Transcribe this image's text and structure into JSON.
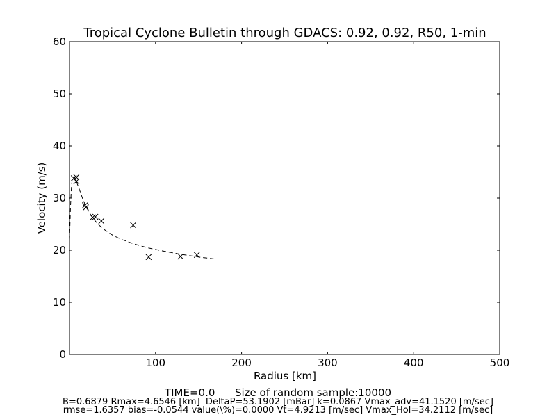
{
  "chart_data": {
    "type": "scatter",
    "title": "Tropical Cyclone Bulletin through GDACS: 0.92, 0.92, R50, 1-min",
    "xlabel": "Radius [km]",
    "ylabel": "Velocity (m/s)",
    "xlim": [
      0,
      500
    ],
    "ylim": [
      0,
      60
    ],
    "xticks": [
      100,
      200,
      300,
      400,
      500
    ],
    "xtick_labels": [
      "100",
      "200",
      "300",
      "400",
      "500"
    ],
    "yticks": [
      0,
      10,
      20,
      30,
      40,
      50,
      60
    ],
    "ytick_labels": [
      "0",
      "10",
      "20",
      "30",
      "40",
      "50",
      "60"
    ],
    "grid": false,
    "series": [
      {
        "kind": "markers",
        "marker": "x",
        "color": "#000000",
        "x": [
          5,
          8,
          8,
          18,
          19,
          27,
          30,
          37,
          74,
          92,
          129,
          148
        ],
        "y": [
          33.8,
          34.0,
          33.2,
          28.6,
          28.2,
          26.3,
          26.4,
          25.6,
          24.8,
          18.7,
          18.8,
          19.1
        ]
      },
      {
        "kind": "dashed-line",
        "color": "#000000",
        "x": [
          0,
          0.6,
          1.2,
          2,
          3,
          4,
          5,
          6,
          7,
          8,
          10,
          12,
          15,
          18,
          22,
          27,
          33,
          40,
          50,
          60,
          75,
          90,
          110,
          130,
          150,
          170
        ],
        "y": [
          22.0,
          25.0,
          28.5,
          31.5,
          33.4,
          34.0,
          34.1,
          33.9,
          33.6,
          33.2,
          32.3,
          31.4,
          30.0,
          28.8,
          27.5,
          26.2,
          25.0,
          24.0,
          22.9,
          22.1,
          21.2,
          20.5,
          19.8,
          19.2,
          18.7,
          18.3
        ]
      }
    ]
  },
  "footer": {
    "line1": "TIME=0.0      Size of random sample:10000",
    "line2": "B=0.6879 Rmax=4.6546 [km]  DeltaP=53.1902 [mBar] k=0.0867 Vmax_adv=41.1520 [m/sec]",
    "line3": "rmse=1.6357 bias=-0.0544 value(\\%)=0.0000 Vt=4.9213 [m/sec] Vmax_Hol=34.2112 [m/sec]"
  }
}
